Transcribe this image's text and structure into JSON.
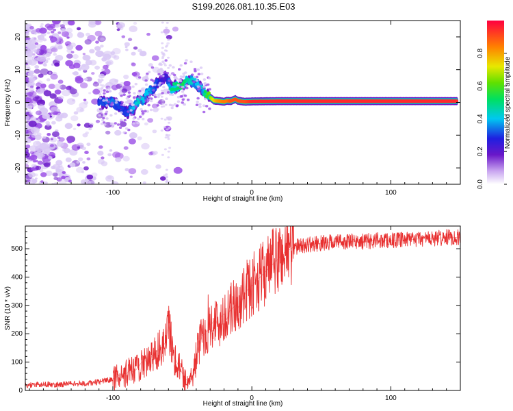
{
  "title": "S199.2026.081.10.35.E03",
  "colors": {
    "snr_line": "#e83030",
    "scatter_faint": "#d9c8f5",
    "scatter_main": "#9a4de6",
    "scatter_dark": "#6a17c9"
  },
  "chart_data": [
    {
      "type": "heatmap",
      "title": "",
      "xlabel": "Height of straight line (km)",
      "ylabel": "Frequency (Hz)",
      "xlim": [
        -163,
        150
      ],
      "ylim": [
        -25,
        25
      ],
      "x_ticks": [
        -100,
        0,
        100
      ],
      "y_ticks": [
        -20,
        -10,
        0,
        10,
        20
      ],
      "x_tick_labels": [
        "-100",
        "0",
        "100"
      ],
      "y_tick_labels": [
        "-20",
        "-10",
        "0",
        "10",
        "20"
      ],
      "colorbar": {
        "label": "Normalized spectral amplitude",
        "range": [
          0,
          1
        ],
        "ticks": [
          0.0,
          0.2,
          0.4,
          0.6,
          0.8
        ],
        "tick_labels": [
          "0.0",
          "0.2",
          "0.4",
          "0.6",
          "0.8"
        ]
      },
      "ridge": {
        "x": [
          -110,
          -100,
          -95,
          -90,
          -85,
          -80,
          -78,
          -75,
          -72,
          -68,
          -65,
          -62,
          -58,
          -55,
          -50,
          -45,
          -40,
          -36,
          -33,
          -30,
          -27,
          -25,
          -20,
          -18,
          -15,
          -12,
          -10,
          -5,
          0,
          20,
          40,
          60,
          80,
          100,
          120,
          140,
          148
        ],
        "freq": [
          0,
          0,
          -1.5,
          -3,
          -2,
          2,
          0.5,
          3,
          3.5,
          6,
          6.5,
          8,
          4,
          5,
          5.5,
          7,
          6,
          4,
          3,
          1.5,
          0.5,
          0.5,
          0.2,
          0.5,
          0.4,
          1,
          0.5,
          0.2,
          0.3,
          0.4,
          0.4,
          0.4,
          0.4,
          0.4,
          0.4,
          0.4,
          0.4
        ],
        "amplitude": [
          0.3,
          0.35,
          0.3,
          0.3,
          0.4,
          0.45,
          0.4,
          0.4,
          0.35,
          0.3,
          0.25,
          0.2,
          0.5,
          0.5,
          0.55,
          0.45,
          0.4,
          0.4,
          0.55,
          0.65,
          0.75,
          0.8,
          0.85,
          0.85,
          0.9,
          0.9,
          0.9,
          0.9,
          0.95,
          0.95,
          0.95,
          0.95,
          0.95,
          0.95,
          0.95,
          0.95,
          0.95
        ]
      }
    },
    {
      "type": "line",
      "title": "",
      "xlabel": "Height of straight line (km)",
      "ylabel": "SNR (10 * v/v)",
      "xlim": [
        -163,
        150
      ],
      "ylim": [
        0,
        580
      ],
      "x_ticks": [
        -100,
        0,
        100
      ],
      "y_ticks": [
        0,
        100,
        200,
        300,
        400,
        500
      ],
      "x_tick_labels": [
        "-100",
        "0",
        "100"
      ],
      "y_tick_labels": [
        "0",
        "100",
        "200",
        "300",
        "400",
        "500"
      ],
      "series": [
        {
          "name": "SNR",
          "x": [
            -163,
            -150,
            -140,
            -130,
            -120,
            -110,
            -100,
            -95,
            -90,
            -88,
            -85,
            -82,
            -80,
            -77,
            -75,
            -72,
            -70,
            -68,
            -65,
            -62,
            -60,
            -58,
            -56,
            -54,
            -52,
            -50,
            -48,
            -46,
            -44,
            -42,
            -40,
            -38,
            -36,
            -34,
            -32,
            -30,
            -28,
            -26,
            -24,
            -22,
            -20,
            -18,
            -16,
            -14,
            -12,
            -10,
            -8,
            -6,
            -4,
            -2,
            0,
            2,
            4,
            6,
            8,
            10,
            12,
            14,
            16,
            18,
            20,
            22,
            24,
            26,
            28,
            30,
            35,
            40,
            45,
            50,
            60,
            70,
            80,
            90,
            100,
            110,
            120,
            130,
            140,
            150
          ],
          "values": [
            18,
            22,
            20,
            25,
            24,
            30,
            40,
            55,
            60,
            70,
            65,
            80,
            95,
            110,
            90,
            120,
            130,
            140,
            150,
            170,
            230,
            180,
            120,
            100,
            80,
            60,
            40,
            35,
            30,
            60,
            120,
            160,
            190,
            200,
            210,
            230,
            240,
            250,
            220,
            260,
            270,
            250,
            280,
            290,
            300,
            290,
            310,
            330,
            350,
            360,
            370,
            380,
            390,
            400,
            410,
            420,
            430,
            440,
            450,
            460,
            470,
            480,
            490,
            495,
            500,
            505,
            510,
            515,
            515,
            520,
            525,
            525,
            525,
            530,
            530,
            530,
            535,
            535,
            540,
            540
          ]
        }
      ]
    }
  ]
}
